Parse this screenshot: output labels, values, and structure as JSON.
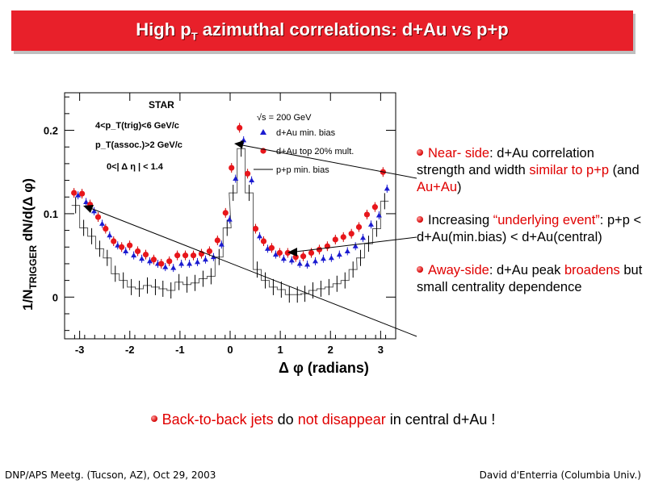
{
  "title": {
    "prefix": "High p",
    "sub": "T",
    "rest": " azimuthal correlations: d+Au vs p+p"
  },
  "chart_data": {
    "type": "scatter",
    "xlabel": "Δ φ (radians)",
    "ylabel_main": "1/N",
    "ylabel_sub": "TRIGGER",
    "ylabel_rest": " dN/d(Δ φ)",
    "xlim": [
      -3.3,
      3.3
    ],
    "ylim": [
      -0.05,
      0.245
    ],
    "xticks": [
      -3,
      -2,
      -1,
      0,
      1,
      2,
      3
    ],
    "yticks": [
      0,
      0.1,
      0.2
    ],
    "yticklabels": [
      "0",
      "0.1",
      "0.2"
    ],
    "annotations": {
      "experiment": "STAR",
      "trig_cut": "4<p_T(trig)<6 GeV/c",
      "assoc_cut": "p_T(assoc.)>2 GeV/c",
      "eta_cut": "0<| Δ η | < 1.4",
      "energy": "√s = 200 GeV"
    },
    "x": [
      -3.08,
      -2.92,
      -2.76,
      -2.6,
      -2.45,
      -2.29,
      -2.13,
      -1.97,
      -1.81,
      -1.65,
      -1.49,
      -1.34,
      -1.18,
      -1.02,
      -0.86,
      -0.7,
      -0.54,
      -0.38,
      -0.22,
      -0.06,
      0.06,
      0.22,
      0.38,
      0.54,
      0.7,
      0.86,
      1.02,
      1.18,
      1.34,
      1.49,
      1.65,
      1.81,
      1.97,
      2.13,
      2.29,
      2.45,
      2.6,
      2.76,
      2.92,
      3.08
    ],
    "series": [
      {
        "name": "d+Au top 20% mult.",
        "marker": "circle",
        "color": "#e8161b",
        "values": [
          0.125,
          0.124,
          0.111,
          0.096,
          0.082,
          0.067,
          0.06,
          0.062,
          0.055,
          0.051,
          0.045,
          0.04,
          0.043,
          0.05,
          0.05,
          0.05,
          0.052,
          0.055,
          0.068,
          0.101,
          0.155,
          0.203,
          0.148,
          0.082,
          0.067,
          0.059,
          0.053,
          0.053,
          0.048,
          0.049,
          0.053,
          0.057,
          0.061,
          0.069,
          0.072,
          0.076,
          0.084,
          0.099,
          0.108,
          0.15
        ]
      },
      {
        "name": "d+Au min. bias",
        "marker": "triangle",
        "color": "#1b1bd0",
        "values": [
          0.122,
          0.114,
          0.103,
          0.088,
          0.074,
          0.062,
          0.055,
          0.05,
          0.046,
          0.043,
          0.04,
          0.036,
          0.035,
          0.04,
          0.04,
          0.042,
          0.045,
          0.048,
          0.063,
          0.093,
          0.142,
          0.188,
          0.14,
          0.073,
          0.058,
          0.051,
          0.046,
          0.044,
          0.04,
          0.039,
          0.043,
          0.046,
          0.047,
          0.051,
          0.055,
          0.061,
          0.071,
          0.087,
          0.098,
          0.13
        ]
      },
      {
        "name": "p+p min. bias",
        "marker": "line",
        "color": "#000000",
        "values": [
          0.11,
          0.083,
          0.073,
          0.058,
          0.047,
          0.028,
          0.02,
          0.012,
          0.01,
          0.014,
          0.012,
          0.01,
          0.008,
          0.018,
          0.015,
          0.017,
          0.022,
          0.025,
          0.048,
          0.083,
          0.125,
          0.178,
          0.125,
          0.033,
          0.02,
          0.012,
          0.009,
          0.003,
          0.003,
          0.004,
          0.008,
          0.01,
          0.012,
          0.016,
          0.02,
          0.033,
          0.047,
          0.064,
          0.082,
          0.115
        ]
      }
    ]
  },
  "bullets": [
    {
      "a": "Near- side",
      "b": ": d+Au correlation strength and width ",
      "c": "similar to p+p",
      "d": " (and ",
      "e": "Au+Au",
      "f": ")"
    },
    {
      "a": "Increasing ",
      "b": "“underlying event”",
      "c": ": p+p < d+Au(min.bias) < d+Au(central)"
    },
    {
      "a": "Away-side",
      "b": ": d+Au peak ",
      "c": "broadens",
      "d": " but small centrality dependence"
    }
  ],
  "bottom": {
    "a": "Back-to-back jets",
    "b": " do ",
    "c": "not disappear",
    "d": " in central d+Au !"
  },
  "footer": {
    "left": "DNP/APS Meetg. (Tucson, AZ), Oct 29, 2003",
    "right": "David d'Enterria (Columbia Univ.)"
  }
}
